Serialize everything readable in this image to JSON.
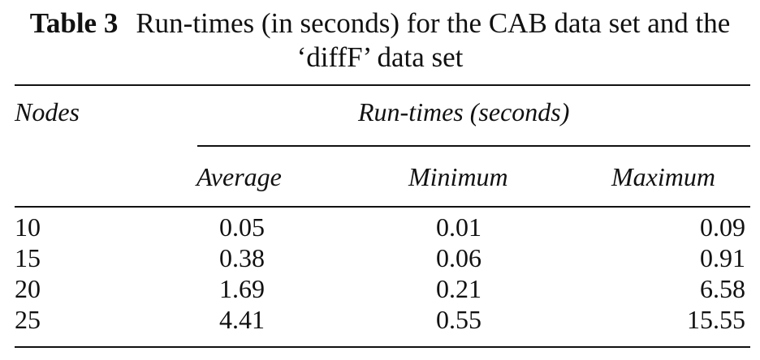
{
  "caption": {
    "label": "Table 3",
    "line1": "Run-times (in seconds) for the CAB data set and the",
    "line2": "‘diffF’ data set"
  },
  "header": {
    "stub": "Nodes",
    "spanner": "Run-times (seconds)",
    "columns": [
      "Average",
      "Minimum",
      "Maximum"
    ]
  },
  "rows": [
    {
      "nodes": "10",
      "average": "0.05",
      "minimum": "0.01",
      "maximum": "0.09"
    },
    {
      "nodes": "15",
      "average": "0.38",
      "minimum": "0.06",
      "maximum": "0.91"
    },
    {
      "nodes": "20",
      "average": "1.69",
      "minimum": "0.21",
      "maximum": "6.58"
    },
    {
      "nodes": "25",
      "average": "4.41",
      "minimum": "0.55",
      "maximum": "15.55"
    }
  ]
}
